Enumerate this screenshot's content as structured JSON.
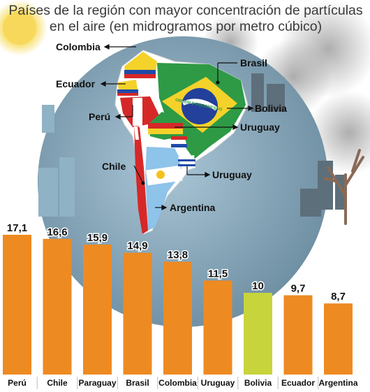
{
  "title_line1": "Países de la región con mayor concentración de partículas",
  "title_line2": "en el aire (en midrogramos por metro cúbico)",
  "map_labels": {
    "colombia": "Colombia",
    "ecuador": "Ecuador",
    "peru": "Perú",
    "chile": "Chile",
    "argentina": "Argentina",
    "brasil": "Brasil",
    "bolivia": "Bolivia",
    "uruguay_upper": "Uruguay",
    "uruguay_lower": "Uruguay",
    "brazil_flag_motto": "ORDEM E PROGRESSO"
  },
  "colors": {
    "bar_default": "#ee8a22",
    "bar_highlight": "#c8d43c",
    "background_globe": "#7c9fb4",
    "label_bg": "#ffffff"
  },
  "chart_data": {
    "type": "bar",
    "title": "Países de la región con mayor concentración de partículas en el aire (en midrogramos por metro cúbico)",
    "categories": [
      "Perú",
      "Chile",
      "Paraguay",
      "Brasil",
      "Colombia",
      "Uruguay",
      "Bolivia",
      "Ecuador",
      "Argentina"
    ],
    "values": [
      17.1,
      16.6,
      15.9,
      14.9,
      13.8,
      11.5,
      10,
      9.7,
      8.7
    ],
    "value_labels": [
      "17,1",
      "16,6",
      "15,9",
      "14,9",
      "13,8",
      "11,5",
      "10",
      "9,7",
      "8,7"
    ],
    "highlight_category": "Bolivia",
    "ylim": [
      0,
      17.1
    ],
    "grid": false,
    "legend": "none"
  }
}
